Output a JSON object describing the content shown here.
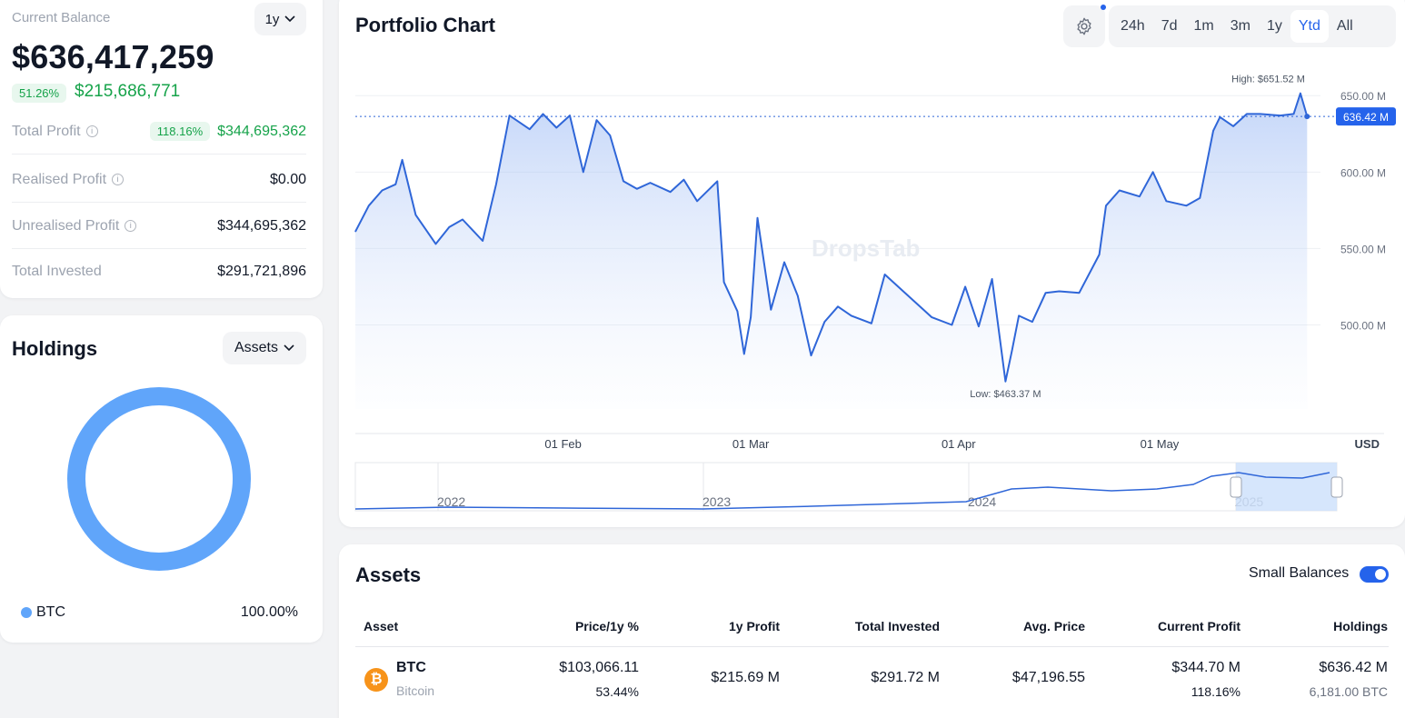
{
  "balance": {
    "label": "Current Balance",
    "period": "1y",
    "value": "$636,417,259",
    "change_pct": "51.26%",
    "change_value": "$215,686,771",
    "rows": [
      {
        "label": "Total Profit",
        "pct": "118.16%",
        "value": "$344,695,362",
        "tone": "green"
      },
      {
        "label": "Realised Profit",
        "value": "$0.00",
        "tone": "neutral"
      },
      {
        "label": "Unrealised Profit",
        "value": "$344,695,362",
        "tone": "green"
      },
      {
        "label": "Total Invested",
        "value": "$291,721,896",
        "tone": "neutral"
      }
    ]
  },
  "holdings": {
    "title": "Holdings",
    "group_by": "Assets",
    "legend": [
      {
        "name": "BTC",
        "percent": "100.00%",
        "color": "#60a5fa"
      }
    ]
  },
  "chart_header": {
    "title": "Portfolio Chart",
    "ranges": [
      "24h",
      "7d",
      "1m",
      "3m",
      "1y",
      "Ytd",
      "All"
    ],
    "active_range": "Ytd"
  },
  "chart_data": {
    "type": "area",
    "title": "Portfolio Chart",
    "unit_label": "USD",
    "y_tick_labels": [
      "650.00 M",
      "600.00 M",
      "550.00 M",
      "500.00 M"
    ],
    "y_ticks": [
      650,
      600,
      550,
      500
    ],
    "ylim": [
      445,
      665
    ],
    "x_tick_labels": [
      "01 Feb",
      "01 Mar",
      "01 Apr",
      "01 May"
    ],
    "x_tick_dates": [
      "2025-02-01",
      "2025-03-01",
      "2025-04-01",
      "2025-05-01"
    ],
    "x_start": "2025-01-01",
    "x_end": "2025-05-25",
    "high_label": "High: $651.52 M",
    "low_label": "Low: $463.37 M",
    "high": {
      "date": "2025-05-22",
      "value": 651.52
    },
    "low": {
      "date": "2025-04-08",
      "value": 463.37
    },
    "current_label": "636.42 M",
    "current": 636.42,
    "series": [
      {
        "x": [
          "2025-01-01",
          "2025-01-03",
          "2025-01-05",
          "2025-01-07",
          "2025-01-08",
          "2025-01-10",
          "2025-01-13",
          "2025-01-15",
          "2025-01-17",
          "2025-01-20",
          "2025-01-22",
          "2025-01-24",
          "2025-01-27",
          "2025-01-29",
          "2025-01-31",
          "2025-02-02",
          "2025-02-04",
          "2025-02-06",
          "2025-02-08",
          "2025-02-10",
          "2025-02-12",
          "2025-02-14",
          "2025-02-17",
          "2025-02-19",
          "2025-02-21",
          "2025-02-24",
          "2025-02-25",
          "2025-02-27",
          "2025-02-28",
          "2025-03-01",
          "2025-03-02",
          "2025-03-04",
          "2025-03-06",
          "2025-03-08",
          "2025-03-10",
          "2025-03-12",
          "2025-03-14",
          "2025-03-16",
          "2025-03-19",
          "2025-03-21",
          "2025-03-24",
          "2025-03-26",
          "2025-03-28",
          "2025-03-31",
          "2025-04-02",
          "2025-04-04",
          "2025-04-06",
          "2025-04-08",
          "2025-04-09",
          "2025-04-10",
          "2025-04-12",
          "2025-04-14",
          "2025-04-16",
          "2025-04-19",
          "2025-04-22",
          "2025-04-23",
          "2025-04-25",
          "2025-04-28",
          "2025-04-30",
          "2025-05-02",
          "2025-05-05",
          "2025-05-07",
          "2025-05-09",
          "2025-05-10",
          "2025-05-12",
          "2025-05-14",
          "2025-05-16",
          "2025-05-19",
          "2025-05-21",
          "2025-05-22",
          "2025-05-23"
        ],
        "values": [
          561,
          578,
          588,
          592,
          608,
          572,
          553,
          564,
          569,
          555,
          592,
          637,
          628,
          638,
          629,
          637,
          600,
          634,
          624,
          594,
          589,
          593,
          587,
          595,
          581,
          594,
          528,
          509,
          481,
          505,
          570,
          510,
          541,
          519,
          480,
          502,
          512,
          506,
          501,
          533,
          521,
          513,
          505,
          500,
          525,
          499,
          530,
          463,
          484,
          506,
          502,
          521,
          522,
          521,
          546,
          578,
          588,
          584,
          600,
          581,
          578,
          583,
          627,
          636,
          630,
          638,
          638,
          637,
          638,
          651.5,
          636.4
        ]
      }
    ]
  },
  "navigator": {
    "year_labels": [
      "2022",
      "2023",
      "2024",
      "2025"
    ]
  },
  "watermark": "DropsTab",
  "assets": {
    "title": "Assets",
    "small_balances_label": "Small Balances",
    "columns": [
      "Asset",
      "Price/1y %",
      "1y Profit",
      "Total Invested",
      "Avg. Price",
      "Current Profit",
      "Holdings"
    ],
    "rows": [
      {
        "symbol": "BTC",
        "name": "Bitcoin",
        "price": "$103,066.11",
        "price_change": "53.44%",
        "profit_1y": "$215.69 M",
        "total_invested": "$291.72 M",
        "avg_price": "$47,196.55",
        "current_profit": "$344.70 M",
        "current_profit_pct": "118.16%",
        "holdings_value": "$636.42 M",
        "holdings_amount": "6,181.00 BTC"
      }
    ]
  }
}
